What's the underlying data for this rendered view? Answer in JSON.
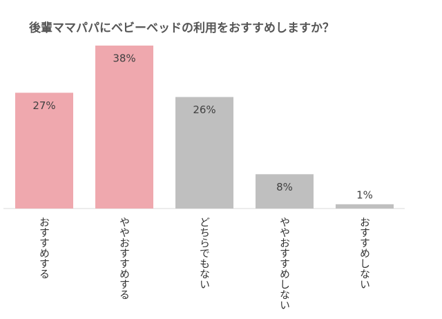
{
  "chart_data": {
    "type": "bar",
    "title": "後輩ママパパにベビーベッドの利用をおすすめしますか？",
    "categories": [
      "おすすめする",
      "ややおすすめする",
      "どちらでもない",
      "ややおすすめしない",
      "おすすめしない"
    ],
    "values": [
      27,
      38,
      26,
      8,
      1
    ],
    "value_labels": [
      "27%",
      "38%",
      "26%",
      "8%",
      "1%"
    ],
    "colors": [
      "#efa8ae",
      "#efa8ae",
      "#bfbfbf",
      "#bfbfbf",
      "#bfbfbf"
    ]
  }
}
